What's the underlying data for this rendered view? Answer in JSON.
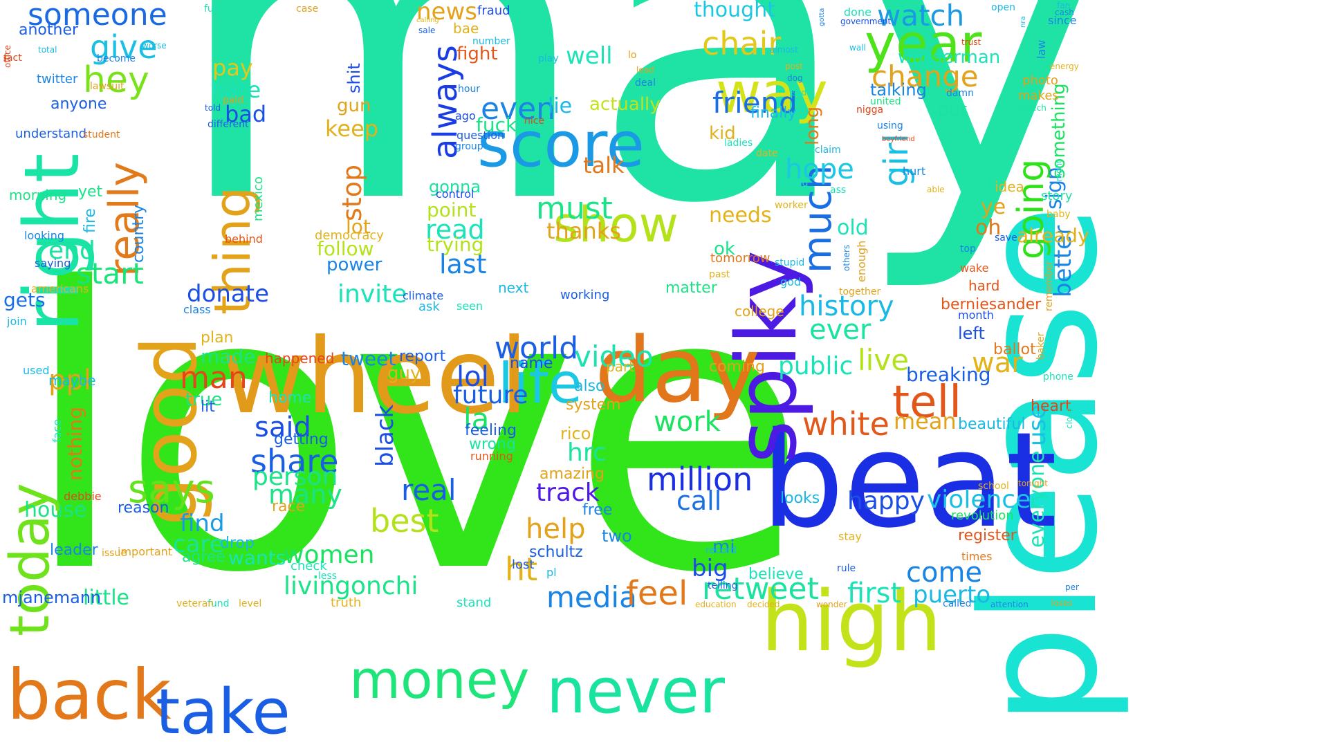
{
  "words": [
    {
      "text": "may",
      "color": "#1ee3a4"
    },
    {
      "text": "love",
      "color": "#32e41a"
    },
    {
      "text": "please",
      "color": "#19e3d3"
    },
    {
      "text": "beat",
      "color": "#1a2ee4"
    },
    {
      "text": "high",
      "color": "#c3e21a"
    },
    {
      "text": "wheel",
      "color": "#e29a1a"
    },
    {
      "text": "spiky",
      "color": "#4d1ae4"
    },
    {
      "text": "day",
      "color": "#e2761a"
    },
    {
      "text": "good",
      "color": "#e2a21a"
    },
    {
      "text": "right",
      "color": "#19e3a5"
    },
    {
      "text": "back",
      "color": "#e2781a"
    },
    {
      "text": "take",
      "color": "#1a5ee4"
    },
    {
      "text": "never",
      "color": "#1ae3a0"
    },
    {
      "text": "money",
      "color": "#1ee57a"
    },
    {
      "text": "today",
      "color": "#6ee21a"
    },
    {
      "text": "score",
      "color": "#1a9ae4"
    },
    {
      "text": "life",
      "color": "#1ac8e4"
    },
    {
      "text": "show",
      "color": "#b4e21a"
    },
    {
      "text": "way",
      "color": "#d4e21a"
    },
    {
      "text": "year",
      "color": "#4ee21a"
    },
    {
      "text": "thing",
      "color": "#e2a21a"
    },
    {
      "text": "really",
      "color": "#e27a1a"
    },
    {
      "text": "much",
      "color": "#1a6ee4"
    },
    {
      "text": "tell",
      "color": "#e2561a"
    },
    {
      "text": "says",
      "color": "#62e21a"
    },
    {
      "text": "someone",
      "color": "#1a6ae4"
    },
    {
      "text": "hey",
      "color": "#7ae21a"
    },
    {
      "text": "give",
      "color": "#1ac0e4"
    },
    {
      "text": "start",
      "color": "#1ae37a"
    },
    {
      "text": "million",
      "color": "#1a2ee4"
    },
    {
      "text": "white",
      "color": "#e2581a"
    },
    {
      "text": "going",
      "color": "#2ee21a"
    },
    {
      "text": "always",
      "color": "#1a3ce4"
    },
    {
      "text": "girl",
      "color": "#1ac0e4"
    },
    {
      "text": "retweet",
      "color": "#1ae3a0"
    },
    {
      "text": "livingonchi",
      "color": "#1ae388"
    },
    {
      "text": "media",
      "color": "#1a84e4"
    },
    {
      "text": "feel",
      "color": "#e2781a"
    },
    {
      "text": "ht",
      "color": "#e2b21a"
    },
    {
      "text": "women",
      "color": "#1ae360"
    },
    {
      "text": "best",
      "color": "#b4e21a"
    },
    {
      "text": "must",
      "color": "#1ae388"
    },
    {
      "text": "even",
      "color": "#1a84e4"
    },
    {
      "text": "world",
      "color": "#1a5ee4"
    },
    {
      "text": "video",
      "color": "#1ae3b0"
    },
    {
      "text": "share",
      "color": "#1a5ee4"
    },
    {
      "text": "said",
      "color": "#1a4ee4"
    },
    {
      "text": "man",
      "color": "#e2461a"
    },
    {
      "text": "ppl",
      "color": "#e2a21a"
    },
    {
      "text": "end",
      "color": "#1ae3a0"
    },
    {
      "text": "donate",
      "color": "#1a4ee4"
    },
    {
      "text": "invite",
      "color": "#1ae3b8"
    },
    {
      "text": "chair",
      "color": "#e2c81a"
    },
    {
      "text": "friend",
      "color": "#1a6ee4"
    },
    {
      "text": "watch",
      "color": "#1a9ae4"
    },
    {
      "text": "change",
      "color": "#e2a21a"
    },
    {
      "text": "hope",
      "color": "#1ac8e4"
    },
    {
      "text": "history",
      "color": "#1ab8e4"
    },
    {
      "text": "ever",
      "color": "#1ae3a0"
    },
    {
      "text": "live",
      "color": "#b4e21a"
    },
    {
      "text": "public",
      "color": "#1ae3b8"
    },
    {
      "text": "lol",
      "color": "#1a4ee4"
    },
    {
      "text": "future",
      "color": "#1a5ee4"
    },
    {
      "text": "la",
      "color": "#1ae36a"
    },
    {
      "text": "real",
      "color": "#1a5ee4"
    },
    {
      "text": "person",
      "color": "#1ae388"
    },
    {
      "text": "many",
      "color": "#1ae388"
    },
    {
      "text": "work",
      "color": "#1ae360"
    },
    {
      "text": "help",
      "color": "#e2a21a"
    },
    {
      "text": "track",
      "color": "#4d1ae4"
    },
    {
      "text": "hrc",
      "color": "#1ae3a0"
    },
    {
      "text": "call",
      "color": "#1a6ee4"
    },
    {
      "text": "happy",
      "color": "#1a4ee4"
    },
    {
      "text": "violence",
      "color": "#1ac0e4"
    },
    {
      "text": "mean",
      "color": "#e2a21a"
    },
    {
      "text": "come",
      "color": "#1a84e4"
    },
    {
      "text": "first",
      "color": "#1ae3b8"
    },
    {
      "text": "puerto",
      "color": "#1ab8e4"
    },
    {
      "text": "war",
      "color": "#e2b21a"
    },
    {
      "text": "breaking",
      "color": "#1a5ee4"
    },
    {
      "text": "use",
      "color": "#1ac0e4"
    },
    {
      "text": "better",
      "color": "#1a84e4"
    },
    {
      "text": "everyone",
      "color": "#1ae3b8"
    },
    {
      "text": "house",
      "color": "#1ae388"
    },
    {
      "text": "little",
      "color": "#1ae388"
    },
    {
      "text": "find",
      "color": "#1a9ae4"
    },
    {
      "text": "care",
      "color": "#1ae3a0"
    },
    {
      "text": "wants",
      "color": "#1ae3b8"
    },
    {
      "text": "big",
      "color": "#1a4ee4"
    },
    {
      "text": "black",
      "color": "#1a4ee4"
    },
    {
      "text": "stop",
      "color": "#e2781a"
    },
    {
      "text": "keep",
      "color": "#e2b21a"
    },
    {
      "text": "read",
      "color": "#1ae3b8"
    },
    {
      "text": "last",
      "color": "#1a84e4"
    },
    {
      "text": "point",
      "color": "#b4e21a"
    },
    {
      "text": "trying",
      "color": "#b4e21a"
    },
    {
      "text": "talk",
      "color": "#e2781a"
    },
    {
      "text": "thanks",
      "color": "#e2a21a"
    },
    {
      "text": "well",
      "color": "#1ae3b8"
    },
    {
      "text": "pay",
      "color": "#e2c81a"
    },
    {
      "text": "hate",
      "color": "#1ae3b8"
    },
    {
      "text": "bad",
      "color": "#1a4ee4"
    },
    {
      "text": "news",
      "color": "#e2a21a"
    },
    {
      "text": "fight",
      "color": "#e2561a"
    },
    {
      "text": "thought",
      "color": "#1ac8e4"
    },
    {
      "text": "oh",
      "color": "#e2781a"
    },
    {
      "text": "ye",
      "color": "#e2a21a"
    },
    {
      "text": "old",
      "color": "#1ae3b8"
    },
    {
      "text": "needs",
      "color": "#e2b21a"
    },
    {
      "text": "already",
      "color": "#e2b21a"
    },
    {
      "text": "sign",
      "color": "#1a84e4"
    },
    {
      "text": "something",
      "color": "#1ae360"
    },
    {
      "text": "put",
      "color": "#1ae3a0"
    },
    {
      "text": "long",
      "color": "#e2781a"
    },
    {
      "text": "kid",
      "color": "#e2b21a"
    },
    {
      "text": "ok",
      "color": "#1ae388"
    },
    {
      "text": "follow",
      "color": "#b4e21a"
    },
    {
      "text": "power",
      "color": "#1a84e4"
    },
    {
      "text": "lot",
      "color": "#e2a21a"
    },
    {
      "text": "gonna",
      "color": "#1ae3a0"
    },
    {
      "text": "gun",
      "color": "#e2a21a"
    },
    {
      "text": "fuck",
      "color": "#1ae388"
    },
    {
      "text": "lie",
      "color": "#1ab8e4"
    },
    {
      "text": "actually",
      "color": "#c3e21a"
    },
    {
      "text": "talking",
      "color": "#1a84e4"
    },
    {
      "text": "finally",
      "color": "#1ab8e4"
    },
    {
      "text": "wasserman",
      "color": "#1ae3b8"
    },
    {
      "text": "berniesander",
      "color": "#e2561a"
    },
    {
      "text": "ballot",
      "color": "#e2781a"
    },
    {
      "text": "left",
      "color": "#1a4ee4"
    },
    {
      "text": "heart",
      "color": "#e2461a"
    },
    {
      "text": "register",
      "color": "#e2561a"
    },
    {
      "text": "beautiful",
      "color": "#1ab8e4"
    },
    {
      "text": "revolution",
      "color": "#1ae360"
    },
    {
      "text": "leader",
      "color": "#1a84e4"
    },
    {
      "text": "agree",
      "color": "#1ae388"
    },
    {
      "text": "mjanemann",
      "color": "#1a5ee4"
    },
    {
      "text": "report",
      "color": "#1a5ee4"
    },
    {
      "text": "guy",
      "color": "#e2b21a"
    },
    {
      "text": "tweet",
      "color": "#1a84e4"
    },
    {
      "text": "nothing",
      "color": "#e2781a"
    },
    {
      "text": "true",
      "color": "#1ae388"
    },
    {
      "text": "reason",
      "color": "#1a5ee4"
    },
    {
      "text": "maybe",
      "color": "#1ab8e4"
    },
    {
      "text": "made",
      "color": "#1ae388"
    },
    {
      "text": "gets",
      "color": "#1a6ee4"
    },
    {
      "text": "another",
      "color": "#1a5ee4"
    },
    {
      "text": "twitter",
      "color": "#1a84e4"
    },
    {
      "text": "anyone",
      "color": "#1a5ee4"
    },
    {
      "text": "understand",
      "color": "#1a5ee4"
    },
    {
      "text": "morning",
      "color": "#1ae388"
    },
    {
      "text": "yet",
      "color": "#1ae388"
    },
    {
      "text": "country",
      "color": "#1a84e4"
    },
    {
      "text": "fire",
      "color": "#1ab8e4"
    },
    {
      "text": "bae",
      "color": "#e2b21a"
    },
    {
      "text": "shit",
      "color": "#1a4ee4"
    },
    {
      "text": "name",
      "color": "#1a4ee4"
    },
    {
      "text": "next",
      "color": "#1ab8e4"
    },
    {
      "text": "matter",
      "color": "#1ae388"
    },
    {
      "text": "coming",
      "color": "#e2a21a"
    },
    {
      "text": "college",
      "color": "#e2a21a"
    },
    {
      "text": "looks",
      "color": "#1ab8e4"
    },
    {
      "text": "two",
      "color": "#1a84e4"
    },
    {
      "text": "schultz",
      "color": "#1a5ee4"
    },
    {
      "text": "amazing",
      "color": "#e2a21a"
    },
    {
      "text": "rico",
      "color": "#e2b21a"
    },
    {
      "text": "system",
      "color": "#e2a21a"
    },
    {
      "text": "also",
      "color": "#1ab8e4"
    },
    {
      "text": "happened",
      "color": "#e2461a"
    },
    {
      "text": "plan",
      "color": "#e2b21a"
    },
    {
      "text": "lit",
      "color": "#1a5ee4"
    },
    {
      "text": "race",
      "color": "#e2a21a"
    },
    {
      "text": "home",
      "color": "#1ae3b8"
    },
    {
      "text": "getting",
      "color": "#1a5ee4"
    },
    {
      "text": "wrong",
      "color": "#1ae3a0"
    },
    {
      "text": "feeling",
      "color": "#1a5ee4"
    },
    {
      "text": "running",
      "color": "#e2561a"
    },
    {
      "text": "free",
      "color": "#1a84e4"
    },
    {
      "text": "drop",
      "color": "#1ab8e4"
    },
    {
      "text": "believe",
      "color": "#1ae3b8"
    },
    {
      "text": "mi",
      "color": "#1a84e4"
    },
    {
      "text": "stay",
      "color": "#e2b21a"
    },
    {
      "text": "times",
      "color": "#e2781a"
    },
    {
      "text": "hard",
      "color": "#e2561a"
    },
    {
      "text": "wake",
      "color": "#e2561a"
    },
    {
      "text": "month",
      "color": "#1a4ee4"
    },
    {
      "text": "idea",
      "color": "#e2b21a"
    },
    {
      "text": "story",
      "color": "#1ae3a0"
    },
    {
      "text": "photo",
      "color": "#e2a21a"
    },
    {
      "text": "makes",
      "color": "#e2a21a"
    },
    {
      "text": "law",
      "color": "#1a84e4"
    },
    {
      "text": "since",
      "color": "#1a84e4"
    },
    {
      "text": "open",
      "color": "#1ab8e4"
    },
    {
      "text": "done",
      "color": "#1ae3b8"
    },
    {
      "text": "fraud",
      "color": "#1a4ee4"
    },
    {
      "text": "fun",
      "color": "#1ae3b8"
    },
    {
      "text": "case",
      "color": "#e2a21a"
    },
    {
      "text": "number",
      "color": "#1ab8e4"
    },
    {
      "text": "hour",
      "color": "#1a84e4"
    },
    {
      "text": "group",
      "color": "#1a84e4"
    },
    {
      "text": "question",
      "color": "#1a5ee4"
    },
    {
      "text": "ago",
      "color": "#1a4ee4"
    },
    {
      "text": "control",
      "color": "#1a4ee4"
    },
    {
      "text": "pl",
      "color": "#1ab8e4"
    },
    {
      "text": "lost",
      "color": "#1a5ee4"
    },
    {
      "text": "stand",
      "color": "#1ae3b8"
    },
    {
      "text": "truth",
      "color": "#e2b21a"
    },
    {
      "text": "check",
      "color": "#1ae3b8"
    },
    {
      "text": "less",
      "color": "#1ae3b8"
    },
    {
      "text": "record",
      "color": "#1ab8e4"
    },
    {
      "text": "rule",
      "color": "#1a5ee4"
    },
    {
      "text": "working",
      "color": "#1a5ee4"
    },
    {
      "text": "part",
      "color": "#e2b21a"
    },
    {
      "text": "ask",
      "color": "#1ab8e4"
    },
    {
      "text": "seen",
      "color": "#1ae3b8"
    },
    {
      "text": "climate",
      "color": "#1a5ee4"
    },
    {
      "text": "class",
      "color": "#1a84e4"
    },
    {
      "text": "democracy",
      "color": "#e2b21a"
    },
    {
      "text": "mexico",
      "color": "#1ae388"
    },
    {
      "text": "behind",
      "color": "#e2561a"
    },
    {
      "text": "looking",
      "color": "#1a84e4"
    },
    {
      "text": "saying",
      "color": "#1a5ee4"
    },
    {
      "text": "americans",
      "color": "#e2b21a"
    },
    {
      "text": "join",
      "color": "#1ab8e4"
    },
    {
      "text": "used",
      "color": "#1ab8e4"
    },
    {
      "text": "debbie",
      "color": "#e2461a"
    },
    {
      "text": "face",
      "color": "#1ae3b8"
    },
    {
      "text": "important",
      "color": "#e2a21a"
    },
    {
      "text": "issue",
      "color": "#e2a21a"
    },
    {
      "text": "fund",
      "color": "#1ae3b8"
    },
    {
      "text": "veteran",
      "color": "#e2b21a"
    },
    {
      "text": "level",
      "color": "#e2b21a"
    },
    {
      "text": "education",
      "color": "#e2b21a"
    },
    {
      "text": "telling",
      "color": "#1a5ee4"
    },
    {
      "text": "decided",
      "color": "#e2b21a"
    },
    {
      "text": "wonder",
      "color": "#e2a21a"
    },
    {
      "text": "called",
      "color": "#1a84e4"
    },
    {
      "text": "attention",
      "color": "#1a84e4"
    },
    {
      "text": "loses",
      "color": "#e2a21a"
    },
    {
      "text": "per",
      "color": "#1a84e4"
    },
    {
      "text": "phone",
      "color": "#1ae3b8"
    },
    {
      "text": "baker",
      "color": "#e2a21a"
    },
    {
      "text": "remember",
      "color": "#e2a21a"
    },
    {
      "text": "close",
      "color": "#1ae3b8"
    },
    {
      "text": "tonight",
      "color": "#e2a21a"
    },
    {
      "text": "school",
      "color": "#e2b21a"
    },
    {
      "text": "top",
      "color": "#1a84e4"
    },
    {
      "text": "save",
      "color": "#1a5ee4"
    },
    {
      "text": "baby",
      "color": "#e2b21a"
    },
    {
      "text": "night",
      "color": "#1ae3b8"
    },
    {
      "text": "trust",
      "color": "#e2461a"
    },
    {
      "text": "energy",
      "color": "#e2b21a"
    },
    {
      "text": "speech",
      "color": "#1ae3a0"
    },
    {
      "text": "government",
      "color": "#1a4ee4"
    },
    {
      "text": "wall",
      "color": "#1ab8e4"
    },
    {
      "text": "damn",
      "color": "#1a84e4"
    },
    {
      "text": "united",
      "color": "#1ae388"
    },
    {
      "text": "nigga",
      "color": "#e2461a"
    },
    {
      "text": "using",
      "color": "#1a84e4"
    },
    {
      "text": "boyfriend",
      "color": "#e2461a"
    },
    {
      "text": "hurt",
      "color": "#1a84e4"
    },
    {
      "text": "able",
      "color": "#e2b21a"
    },
    {
      "text": "claim",
      "color": "#1ab8e4"
    },
    {
      "text": "young",
      "color": "#1ae3b8"
    },
    {
      "text": "ass",
      "color": "#1ae3b8"
    },
    {
      "text": "worker",
      "color": "#e2b21a"
    },
    {
      "text": "tomorrow",
      "color": "#e2781a"
    },
    {
      "text": "stupid",
      "color": "#1ab8e4"
    },
    {
      "text": "past",
      "color": "#e2b21a"
    },
    {
      "text": "god",
      "color": "#1ab8e4"
    },
    {
      "text": "together",
      "color": "#e2a21a"
    },
    {
      "text": "enough",
      "color": "#e2a21a"
    },
    {
      "text": "others",
      "color": "#1a84e4"
    },
    {
      "text": "ladies",
      "color": "#1ae3b8"
    },
    {
      "text": "date",
      "color": "#e2b21a"
    },
    {
      "text": "sad",
      "color": "#1ae3b8"
    },
    {
      "text": "post",
      "color": "#e2b21a"
    },
    {
      "text": "dog",
      "color": "#1a84e4"
    },
    {
      "text": "almost",
      "color": "#1ab8e4"
    },
    {
      "text": "lo",
      "color": "#e2a21a"
    },
    {
      "text": "play",
      "color": "#1ab8e4"
    },
    {
      "text": "deal",
      "color": "#1a84e4"
    },
    {
      "text": "lead",
      "color": "#e2a21a"
    },
    {
      "text": "nice",
      "color": "#e2461a"
    },
    {
      "text": "paid",
      "color": "#e2a21a"
    },
    {
      "text": "different",
      "color": "#1a5ee4"
    },
    {
      "text": "told",
      "color": "#1a5ee4"
    },
    {
      "text": "lawsuit",
      "color": "#e2a21a"
    },
    {
      "text": "student",
      "color": "#e2781a"
    },
    {
      "text": "become",
      "color": "#1a84e4"
    },
    {
      "text": "total",
      "color": "#1ab8e4"
    },
    {
      "text": "fact",
      "color": "#e2461a"
    },
    {
      "text": "worse",
      "color": "#1ab8e4"
    },
    {
      "text": "calling",
      "color": "#e2b21a"
    },
    {
      "text": "sale",
      "color": "#1a5ee4"
    },
    {
      "text": "gotta",
      "color": "#1a84e4"
    },
    {
      "text": "nra",
      "color": "#1ab8e4"
    },
    {
      "text": "fan",
      "color": "#1ab8e4"
    },
    {
      "text": "cash",
      "color": "#1a84e4"
    },
    {
      "text": "office",
      "color": "#e2461a"
    }
  ]
}
